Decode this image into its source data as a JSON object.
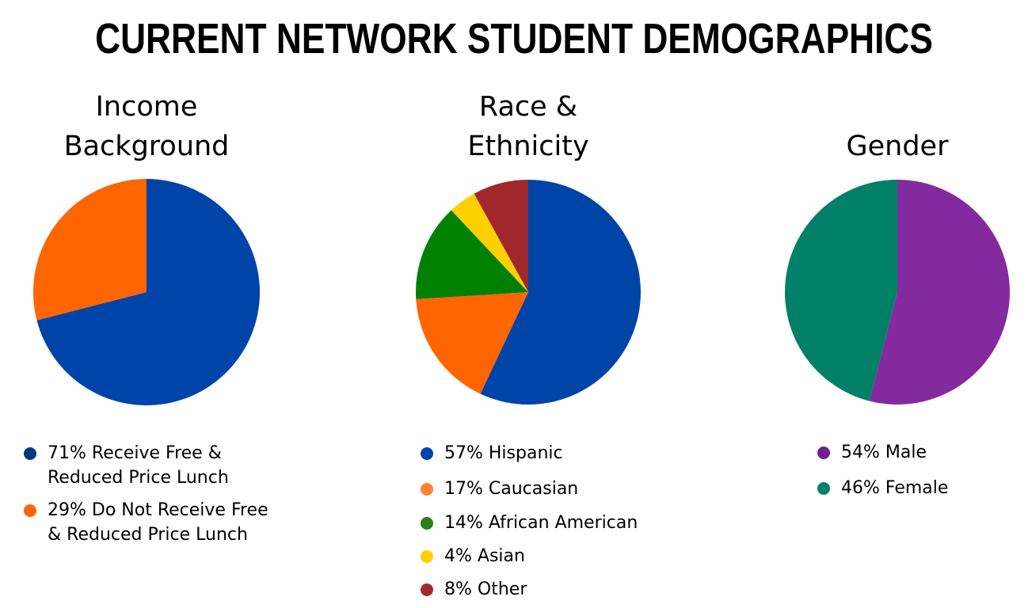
{
  "title": "CURRENT NETWORK STUDENT DEMOGRAPHICS",
  "chart_data": [
    {
      "type": "pie",
      "title_lines": [
        "Income",
        "Background"
      ],
      "slices": [
        {
          "value": 71,
          "color": "#0044A8",
          "legend_color": "#003B7F",
          "label_lines": [
            "71% Receive Free &",
            "Reduced Price Lunch"
          ]
        },
        {
          "value": 29,
          "color": "#FF6500",
          "legend_color": "#FF6500",
          "label_lines": [
            "29% Do Not Receive Free",
            "& Reduced Price Lunch"
          ]
        }
      ]
    },
    {
      "type": "pie",
      "title_lines": [
        "Race &",
        "Ethnicity"
      ],
      "slices": [
        {
          "value": 57,
          "color": "#0044A8",
          "legend_color": "#0044A8",
          "label_lines": [
            "57% Hispanic"
          ]
        },
        {
          "value": 17,
          "color": "#FF6500",
          "legend_color": "#FF8533",
          "label_lines": [
            "17% Caucasian"
          ]
        },
        {
          "value": 14,
          "color": "#008000",
          "legend_color": "#2E7D1F",
          "label_lines": [
            "14% African American"
          ]
        },
        {
          "value": 4,
          "color": "#FFD000",
          "legend_color": "#FFD000",
          "label_lines": [
            "4% Asian"
          ]
        },
        {
          "value": 8,
          "color": "#A0282C",
          "legend_color": "#A52A2A",
          "label_lines": [
            "8% Other"
          ]
        }
      ]
    },
    {
      "type": "pie",
      "title_lines": [
        "Gender"
      ],
      "slices": [
        {
          "value": 54,
          "color": "#842A9F",
          "legend_color": "#6E2288",
          "label_lines": [
            "54% Male"
          ]
        },
        {
          "value": 46,
          "color": "#008066",
          "legend_color": "#00806A",
          "label_lines": [
            "46% Female"
          ]
        }
      ]
    }
  ]
}
